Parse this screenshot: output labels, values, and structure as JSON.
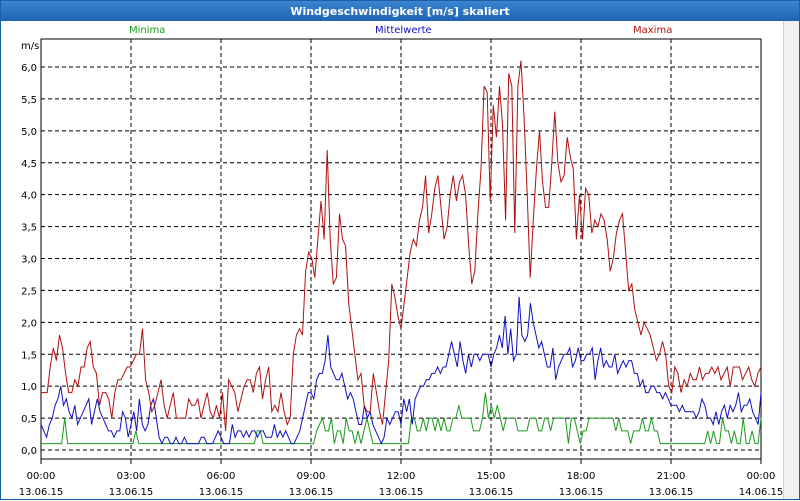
{
  "window": {
    "title": "Windgeschwindigkeit [m/s] skaliert"
  },
  "chart_data": {
    "type": "line",
    "title": "Windgeschwindigkeit [m/s] skaliert",
    "ylabel": "m/s",
    "xlabel": "",
    "ylim": [
      -0.15,
      6.4
    ],
    "xlim": [
      0,
      24
    ],
    "grid": true,
    "legend_placement": "top",
    "y_ticks": [
      "0,0",
      "0,5",
      "1,0",
      "1,5",
      "2,0",
      "2,5",
      "3,0",
      "3,5",
      "4,0",
      "4,5",
      "5,0",
      "5,5",
      "6,0"
    ],
    "x_ticks": [
      {
        "time": "00:00",
        "date": "13.06.15"
      },
      {
        "time": "03:00",
        "date": "13.06.15"
      },
      {
        "time": "06:00",
        "date": "13.06.15"
      },
      {
        "time": "09:00",
        "date": "13.06.15"
      },
      {
        "time": "12:00",
        "date": "13.06.15"
      },
      {
        "time": "15:00",
        "date": "13.06.15"
      },
      {
        "time": "18:00",
        "date": "13.06.15"
      },
      {
        "time": "21:00",
        "date": "13.06.15"
      },
      {
        "time": "00:00",
        "date": "14.06.15"
      }
    ],
    "series": [
      {
        "name": "Minima",
        "color": "#1a9a1a",
        "values": [
          0.1,
          0.1,
          0.1,
          0.1,
          0.1,
          0.1,
          0.1,
          0.1,
          0.5,
          0.1,
          0.1,
          0.1,
          0.1,
          0.1,
          0.1,
          0.1,
          0.1,
          0.1,
          0.1,
          0.1,
          0.1,
          0.1,
          0.1,
          0.1,
          0.1,
          0.1,
          0.1,
          0.1,
          0.1,
          0.1,
          0.1,
          0.1,
          0.3,
          0.1,
          0.1,
          0.1,
          0.1,
          0.1,
          0.1,
          0.1,
          0.1,
          0.1,
          0.1,
          0.1,
          0.1,
          0.1,
          0.1,
          0.1,
          0.1,
          0.1,
          0.1,
          0.1,
          0.1,
          0.1,
          0.1,
          0.1,
          0.1,
          0.1,
          0.1,
          0.1,
          0.1,
          0.1,
          0.1,
          0.1,
          0.1,
          0.1,
          0.1,
          0.1,
          0.1,
          0.1,
          0.1,
          0.1,
          0.1,
          0.3,
          0.3,
          0.1,
          0.1,
          0.1,
          0.1,
          0.1,
          0.1,
          0.1,
          0.1,
          0.1,
          0.1,
          0.1,
          0.1,
          0.1,
          0.1,
          0.1,
          0.1,
          0.1,
          0.1,
          0.3,
          0.4,
          0.5,
          0.3,
          0.3,
          0.5,
          0.1,
          0.3,
          0.3,
          0.1,
          0.5,
          0.3,
          0.3,
          0.1,
          0.3,
          0.1,
          0.3,
          0.5,
          0.3,
          0.1,
          0.1,
          0.1,
          0.1,
          0.1,
          0.1,
          0.1,
          0.1,
          0.1,
          0.1,
          0.1,
          0.1,
          0.1,
          0.5,
          0.5,
          0.3,
          0.3,
          0.5,
          0.3,
          0.5,
          0.5,
          0.3,
          0.5,
          0.3,
          0.5,
          0.3,
          0.3,
          0.5,
          0.5,
          0.7,
          0.5,
          0.5,
          0.5,
          0.5,
          0.3,
          0.3,
          0.3,
          0.5,
          0.9,
          0.5,
          0.7,
          0.5,
          0.7,
          0.5,
          0.3,
          0.5,
          0.5,
          0.5,
          0.5,
          0.3,
          0.3,
          0.3,
          0.3,
          0.5,
          0.5,
          0.5,
          0.3,
          0.3,
          0.5,
          0.5,
          0.3,
          0.5,
          0.5,
          0.5,
          0.5,
          0.5,
          0.1,
          0.5,
          0.5,
          0.3,
          0.1,
          0.3,
          0.3,
          0.5,
          0.5,
          0.5,
          0.5,
          0.5,
          0.5,
          0.5,
          0.5,
          0.5,
          0.3,
          0.5,
          0.3,
          0.3,
          0.3,
          0.1,
          0.3,
          0.3,
          0.3,
          0.5,
          0.3,
          0.3,
          0.5,
          0.3,
          0.3,
          0.1,
          0.1,
          0.1,
          0.1,
          0.1,
          0.1,
          0.1,
          0.1,
          0.1,
          0.1,
          0.1,
          0.1,
          0.1,
          0.1,
          0.1,
          0.1,
          0.3,
          0.1,
          0.3,
          0.1,
          0.1,
          0.5,
          0.3,
          0.3,
          0.1,
          0.3,
          0.1,
          0.1,
          0.5,
          0.1,
          0.1,
          0.3,
          0.1,
          0.1,
          0.5
        ]
      },
      {
        "name": "Mittelwerte",
        "color": "#1010c0",
        "values": [
          0.4,
          0.3,
          0.2,
          0.4,
          0.5,
          0.7,
          0.8,
          1.0,
          0.7,
          0.8,
          0.6,
          0.5,
          0.7,
          0.4,
          0.5,
          0.6,
          0.7,
          0.8,
          0.4,
          0.6,
          0.8,
          0.6,
          0.5,
          0.4,
          0.3,
          0.3,
          0.2,
          0.3,
          0.3,
          0.6,
          0.5,
          0.2,
          0.4,
          0.6,
          0.3,
          0.8,
          0.4,
          0.3,
          0.4,
          0.7,
          0.8,
          0.5,
          0.2,
          0.1,
          0.2,
          0.2,
          0.1,
          0.1,
          0.2,
          0.1,
          0.1,
          0.2,
          0.1,
          0.1,
          0.1,
          0.1,
          0.1,
          0.2,
          0.2,
          0.1,
          0.1,
          0.1,
          0.2,
          0.3,
          0.2,
          0.1,
          0.1,
          0.1,
          0.4,
          0.2,
          0.3,
          0.3,
          0.2,
          0.3,
          0.2,
          0.3,
          0.3,
          0.2,
          0.3,
          0.3,
          0.2,
          0.2,
          0.2,
          0.4,
          0.2,
          0.3,
          0.2,
          0.3,
          0.2,
          0.1,
          0.1,
          0.2,
          0.3,
          0.5,
          0.7,
          0.9,
          0.9,
          0.8,
          1.1,
          1.2,
          1.2,
          1.4,
          1.8,
          1.3,
          1.2,
          1.1,
          1.1,
          1.2,
          1.0,
          0.8,
          0.9,
          0.8,
          0.6,
          0.4,
          0.4,
          0.7,
          0.5,
          0.6,
          0.4,
          0.3,
          0.2,
          0.1,
          0.2,
          0.5,
          0.4,
          0.5,
          0.6,
          0.6,
          0.4,
          0.8,
          0.6,
          0.8,
          0.4,
          0.8,
          0.9,
          1.0,
          1.0,
          1.1,
          1.1,
          1.2,
          1.2,
          1.3,
          1.2,
          1.3,
          1.3,
          1.5,
          1.7,
          1.5,
          1.3,
          1.7,
          1.4,
          1.2,
          1.5,
          1.3,
          1.5,
          1.5,
          1.4,
          1.5,
          1.5,
          1.5,
          1.3,
          1.5,
          1.6,
          1.8,
          1.6,
          2.1,
          1.5,
          1.9,
          1.4,
          1.5,
          2.4,
          1.8,
          1.7,
          1.8,
          2.3,
          2.0,
          1.8,
          1.6,
          1.7,
          1.5,
          1.3,
          1.3,
          1.6,
          1.1,
          1.3,
          1.4,
          1.5,
          1.5,
          1.6,
          1.3,
          1.4,
          1.6,
          1.4,
          1.4,
          1.5,
          1.5,
          1.6,
          1.1,
          1.4,
          1.6,
          1.3,
          1.4,
          1.3,
          1.3,
          1.5,
          1.2,
          1.3,
          1.4,
          1.3,
          1.4,
          1.4,
          1.2,
          1.2,
          1.0,
          1.1,
          0.9,
          0.9,
          1.0,
          1.0,
          0.9,
          0.9,
          0.8,
          0.9,
          0.8,
          0.7,
          0.7,
          0.7,
          0.6,
          0.7,
          0.6,
          0.6,
          0.6,
          0.6,
          0.5,
          0.6,
          0.8,
          0.7,
          0.5,
          0.5,
          0.4,
          0.6,
          0.4,
          0.6,
          0.7,
          0.5,
          0.7,
          0.6,
          0.7,
          0.9,
          0.6,
          0.7,
          0.7,
          0.8,
          0.6,
          0.5,
          0.4,
          0.9
        ]
      },
      {
        "name": "Maxima",
        "color": "#b01010",
        "values": [
          0.9,
          0.9,
          0.9,
          1.3,
          1.6,
          1.4,
          1.8,
          1.6,
          1.2,
          0.9,
          0.9,
          1.1,
          1.0,
          1.3,
          1.3,
          1.6,
          1.7,
          1.3,
          1.2,
          0.7,
          0.9,
          0.9,
          0.8,
          0.5,
          0.9,
          1.1,
          1.1,
          1.2,
          1.3,
          1.3,
          1.4,
          1.5,
          1.5,
          1.9,
          1.1,
          0.9,
          0.6,
          0.7,
          0.9,
          1.1,
          0.7,
          0.5,
          0.7,
          0.9,
          0.5,
          0.5,
          0.5,
          0.5,
          0.8,
          0.7,
          0.7,
          0.8,
          0.5,
          0.7,
          0.9,
          0.6,
          0.5,
          0.7,
          0.5,
          0.9,
          0.3,
          1.1,
          1.0,
          0.9,
          0.6,
          0.8,
          1.0,
          1.1,
          1.1,
          0.9,
          1.2,
          1.3,
          0.8,
          1.1,
          1.3,
          0.6,
          0.7,
          0.6,
          0.9,
          0.6,
          0.4,
          0.5,
          1.5,
          1.8,
          1.9,
          1.8,
          2.8,
          3.1,
          3.0,
          2.7,
          3.3,
          3.9,
          3.3,
          4.7,
          3.3,
          2.6,
          2.7,
          3.7,
          3.3,
          3.2,
          2.3,
          1.9,
          1.5,
          1.1,
          1.2,
          0.7,
          0.6,
          0.6,
          1.2,
          0.9,
          0.6,
          0.4,
          0.9,
          1.4,
          2.6,
          2.4,
          2.1,
          1.9,
          2.3,
          2.7,
          3.1,
          3.3,
          3.2,
          3.6,
          3.8,
          4.3,
          3.4,
          3.7,
          4.1,
          4.3,
          3.8,
          3.3,
          3.5,
          4.0,
          4.3,
          3.9,
          4.2,
          4.3,
          4.0,
          3.2,
          2.6,
          2.8,
          3.7,
          4.4,
          5.7,
          5.6,
          3.9,
          5.4,
          4.9,
          5.7,
          5.1,
          3.6,
          5.9,
          5.7,
          3.4,
          5.7,
          6.1,
          5.2,
          4.0,
          2.7,
          3.6,
          4.4,
          5.0,
          4.2,
          3.8,
          3.8,
          4.5,
          5.3,
          4.5,
          4.2,
          4.3,
          4.9,
          4.6,
          4.4,
          3.3,
          4.0,
          3.3,
          4.1,
          4.0,
          3.4,
          3.6,
          3.5,
          3.7,
          3.6,
          3.3,
          2.8,
          3.0,
          3.4,
          3.6,
          3.7,
          3.1,
          2.5,
          2.6,
          2.2,
          2.0,
          1.8,
          2.0,
          1.9,
          1.8,
          1.6,
          1.4,
          1.5,
          1.7,
          1.5,
          1.0,
          0.9,
          1.3,
          1.2,
          0.9,
          1.1,
          1.0,
          1.2,
          1.1,
          1.1,
          1.3,
          1.1,
          1.2,
          1.2,
          1.3,
          1.2,
          1.3,
          1.1,
          1.2,
          1.3,
          1.0,
          1.3,
          1.3,
          1.3,
          1.1,
          1.2,
          1.3,
          1.1,
          1.0,
          1.2,
          1.3
        ]
      }
    ]
  }
}
